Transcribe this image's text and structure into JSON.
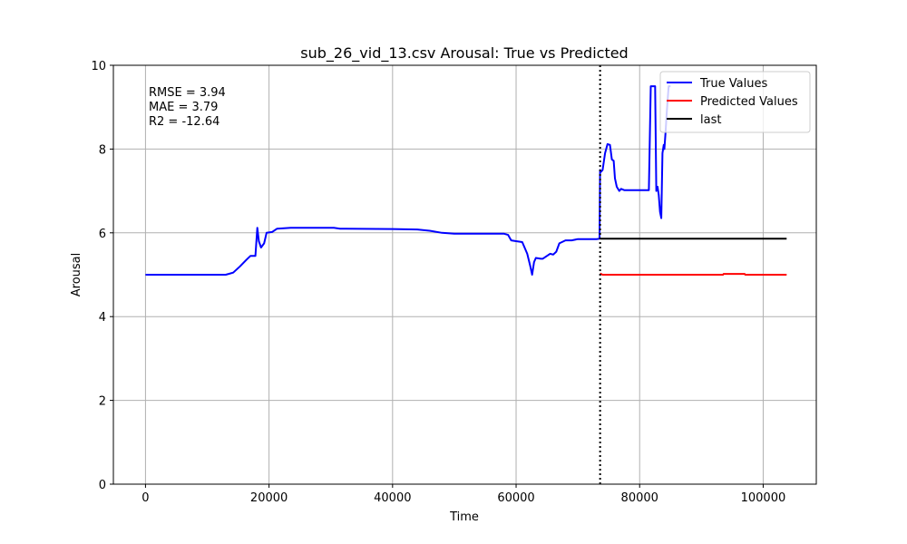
{
  "chart_data": {
    "type": "line",
    "title": "sub_26_vid_13.csv Arousal: True vs Predicted",
    "xlabel": "Time",
    "ylabel": "Arousal",
    "xlim": [
      -5200,
      108600
    ],
    "ylim": [
      0,
      10
    ],
    "x_ticks": [
      0,
      20000,
      40000,
      60000,
      80000,
      100000
    ],
    "y_ticks": [
      0,
      2,
      4,
      6,
      8,
      10
    ],
    "grid": true,
    "legend_position": "top-right",
    "vline_x": 73600,
    "metrics": [
      "RMSE = 3.94",
      "MAE = 3.79",
      "R2 = -12.64"
    ],
    "series": [
      {
        "name": "True Values",
        "color": "#0000ff",
        "x": [
          0,
          13000,
          14200,
          15300,
          16300,
          17000,
          17800,
          18100,
          18350,
          18700,
          19200,
          19600,
          20500,
          21300,
          23500,
          30500,
          31500,
          40000,
          44000,
          46000,
          48000,
          50000,
          58000,
          58700,
          59200,
          60000,
          61000,
          61800,
          62300,
          62600,
          62900,
          63200,
          64000,
          64300,
          65500,
          66000,
          66500,
          67000,
          68000,
          69000,
          70000,
          71000,
          72000,
          73000,
          73500,
          73600,
          73700,
          74000,
          74400,
          74800,
          75200,
          75500,
          75800,
          76000,
          76300,
          76700,
          77000,
          77500,
          78000,
          78500,
          80000,
          81500,
          81800,
          82200,
          82500,
          82700,
          82900,
          83100,
          83300,
          83500,
          83700,
          83900,
          84000,
          84200,
          84400,
          84700,
          85000
        ],
        "values": [
          5.0,
          5.0,
          5.05,
          5.2,
          5.35,
          5.45,
          5.45,
          6.12,
          5.8,
          5.65,
          5.75,
          6.0,
          6.02,
          6.1,
          6.12,
          6.12,
          6.1,
          6.09,
          6.08,
          6.05,
          6.0,
          5.98,
          5.98,
          5.95,
          5.82,
          5.8,
          5.78,
          5.5,
          5.2,
          5.0,
          5.3,
          5.4,
          5.38,
          5.38,
          5.5,
          5.48,
          5.55,
          5.75,
          5.82,
          5.82,
          5.85,
          5.85,
          5.85,
          5.85,
          5.86,
          7.5,
          7.45,
          7.5,
          7.9,
          8.12,
          8.1,
          7.75,
          7.72,
          7.3,
          7.1,
          7.0,
          7.05,
          7.02,
          7.02,
          7.02,
          7.02,
          7.02,
          9.5,
          9.5,
          9.5,
          7.0,
          7.1,
          6.9,
          6.5,
          6.35,
          7.9,
          8.1,
          8.0,
          8.4,
          8.9,
          9.5,
          9.5
        ]
      },
      {
        "name": "Predicted Values",
        "color": "#ff0000",
        "x": [
          73600,
          74000,
          74400,
          93500,
          93600,
          97000,
          97100,
          103800
        ],
        "values": [
          5.03,
          5.0,
          5.0,
          5.0,
          5.02,
          5.02,
          5.0,
          5.0
        ]
      },
      {
        "name": "last",
        "color": "#000000",
        "x": [
          73600,
          103800
        ],
        "values": [
          5.86,
          5.86
        ]
      }
    ]
  }
}
